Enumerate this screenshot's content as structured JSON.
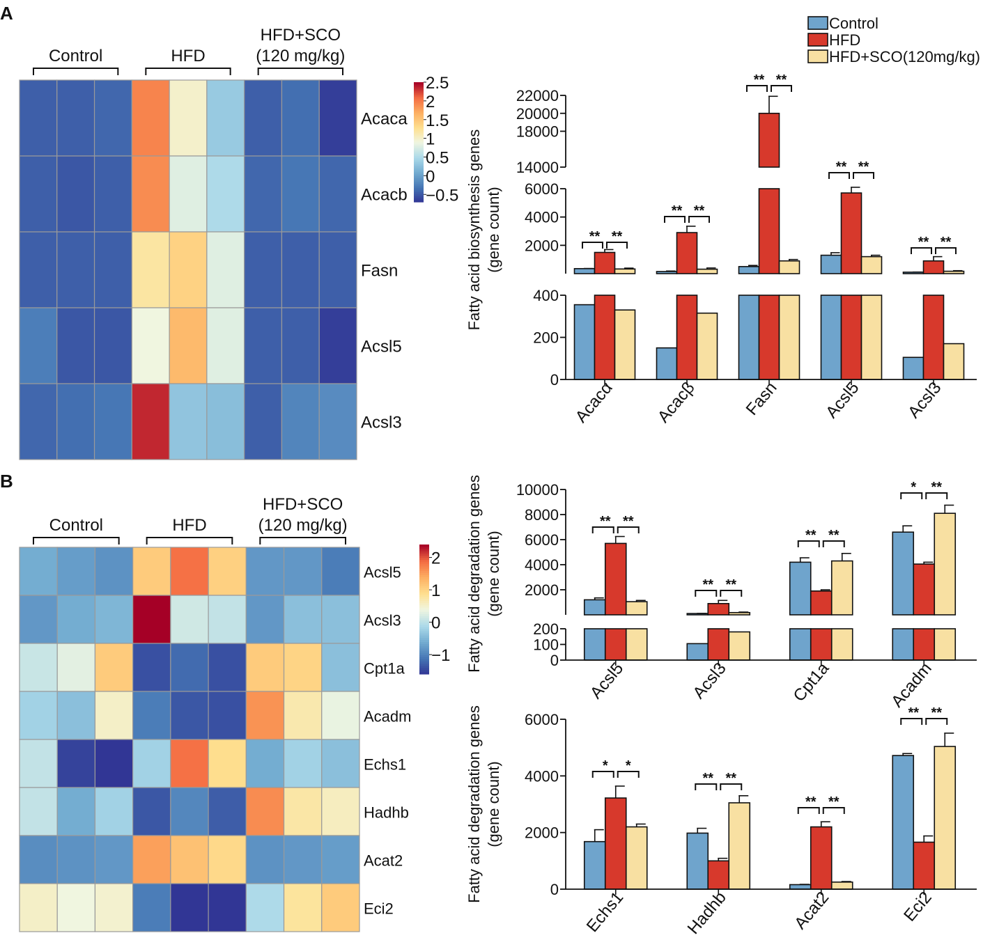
{
  "figure": {
    "panel_a_label": "A",
    "panel_b_label": "B"
  },
  "colors": {
    "control": "#6fa4cc",
    "hfd": "#d7392c",
    "sco": "#f8e0a2",
    "border": "#111111"
  },
  "chart_data": [
    {
      "id": "heatmap_a",
      "type": "heatmap",
      "title": "",
      "groups": [
        {
          "label": "Control"
        },
        {
          "label": "HFD"
        },
        {
          "label": "HFD+SCO",
          "label2": "(120 mg/kg)"
        }
      ],
      "rows": [
        "Acaca",
        "Acacb",
        "Fasn",
        "Acsl5",
        "Acsl3"
      ],
      "values": [
        [
          -0.45,
          -0.45,
          -0.4,
          1.95,
          1.0,
          0.35,
          -0.45,
          -0.35,
          -0.65
        ],
        [
          -0.45,
          -0.5,
          -0.45,
          1.9,
          0.8,
          0.5,
          -0.4,
          -0.3,
          -0.4
        ],
        [
          -0.45,
          -0.45,
          -0.45,
          1.2,
          1.4,
          0.8,
          -0.45,
          -0.45,
          -0.45
        ],
        [
          -0.25,
          -0.5,
          -0.5,
          0.9,
          1.6,
          0.8,
          -0.45,
          -0.45,
          -0.65
        ],
        [
          -0.4,
          -0.35,
          -0.3,
          2.35,
          0.3,
          0.25,
          -0.45,
          -0.2,
          -0.15
        ]
      ],
      "colorbar": {
        "min": -0.7,
        "max": 2.5,
        "ticks": [
          -0.5,
          0,
          0.5,
          1,
          1.5,
          2,
          2.5
        ],
        "tick_labels": [
          "−0.5",
          "0",
          "0.5",
          "1",
          "1.5",
          "2",
          "2.5"
        ]
      }
    },
    {
      "id": "bar_a",
      "type": "bar",
      "title": "",
      "legend": [
        "Control",
        "HFD",
        "HFD+SCO(120mg/kg)"
      ],
      "ylabel": "Fatty acid biosynthesis genes",
      "ylabel2": "(gene count)",
      "categories": [
        "Acacα",
        "Acacβ",
        "Fasn",
        "Acsl5",
        "Acsl3"
      ],
      "series": [
        {
          "name": "Control",
          "values": [
            355,
            150,
            500,
            1300,
            105
          ],
          "errors": [
            10,
            35,
            80,
            180,
            8
          ]
        },
        {
          "name": "HFD",
          "values": [
            1500,
            2900,
            20000,
            5700,
            900
          ],
          "errors": [
            200,
            450,
            1900,
            400,
            300
          ]
        },
        {
          "name": "HFD+SCO(120mg/kg)",
          "values": [
            330,
            315,
            900,
            1200,
            170
          ],
          "errors": [
            60,
            85,
            100,
            100,
            40
          ]
        }
      ],
      "axis_segments": [
        {
          "range": [
            0,
            400
          ],
          "ticks": [
            0,
            200,
            400
          ]
        },
        {
          "range": [
            0,
            6000
          ],
          "ticks": [
            2000,
            4000,
            6000
          ]
        },
        {
          "range": [
            14000,
            22000
          ],
          "ticks": [
            14000,
            18000,
            20000,
            22000
          ]
        }
      ],
      "significance": [
        [
          "**",
          "**"
        ],
        [
          "**",
          "**"
        ],
        [
          "**",
          "**"
        ],
        [
          "**",
          "**"
        ],
        [
          "**",
          "**"
        ]
      ]
    },
    {
      "id": "heatmap_b",
      "type": "heatmap",
      "title": "",
      "groups": [
        {
          "label": "Control"
        },
        {
          "label": "HFD"
        },
        {
          "label": "HFD+SCO",
          "label2": "(120 mg/kg)"
        }
      ],
      "rows": [
        "Acsl5",
        "Acsl3",
        "Cpt1a",
        "Acadm",
        "Echs1",
        "Hadhb",
        "Acat2",
        "Eci2"
      ],
      "values": [
        [
          -0.6,
          -0.75,
          -0.85,
          1.1,
          1.85,
          1.05,
          -0.8,
          -0.8,
          -1.05
        ],
        [
          -0.8,
          -0.6,
          -0.5,
          2.4,
          0.15,
          0.05,
          -0.8,
          -0.4,
          -0.4
        ],
        [
          0.1,
          0.3,
          1.1,
          -1.4,
          -1.2,
          -1.4,
          1.1,
          1.0,
          -0.4
        ],
        [
          -0.2,
          -0.4,
          0.55,
          -1.05,
          -1.35,
          -1.4,
          1.6,
          0.7,
          0.35
        ],
        [
          0.05,
          -1.5,
          -1.6,
          -0.2,
          1.85,
          0.9,
          -0.6,
          -0.2,
          -0.4
        ],
        [
          0.05,
          -0.6,
          -0.2,
          -1.35,
          -0.95,
          -1.3,
          1.65,
          0.75,
          0.6
        ],
        [
          -0.9,
          -0.85,
          -0.8,
          1.5,
          1.2,
          0.95,
          -0.85,
          -0.8,
          -0.75
        ],
        [
          0.55,
          0.4,
          0.5,
          -1.05,
          -1.8,
          -1.75,
          -0.1,
          0.8,
          1.1
        ]
      ],
      "colorbar": {
        "min": -1.6,
        "max": 2.4,
        "ticks": [
          -1,
          0,
          1,
          2
        ],
        "tick_labels": [
          "−1",
          "0",
          "1",
          "2"
        ]
      }
    },
    {
      "id": "bar_b1",
      "type": "bar",
      "title": "",
      "ylabel": "Fatty acid degradation genes",
      "ylabel2": "(gene count)",
      "categories": [
        "Acsl5",
        "Acsl3",
        "Cpt1a",
        "Acadm"
      ],
      "series": [
        {
          "name": "Control",
          "values": [
            1200,
            105,
            4200,
            6600
          ],
          "errors": [
            150,
            8,
            350,
            500
          ]
        },
        {
          "name": "HFD",
          "values": [
            5700,
            900,
            1900,
            4050
          ],
          "errors": [
            550,
            250,
            100,
            150
          ]
        },
        {
          "name": "HFD+SCO(120mg/kg)",
          "values": [
            1050,
            180,
            4300,
            8100
          ],
          "errors": [
            100,
            40,
            600,
            650
          ]
        }
      ],
      "axis_segments": [
        {
          "range": [
            0,
            200
          ],
          "ticks": [
            0,
            100,
            200
          ]
        },
        {
          "range": [
            0,
            10000
          ],
          "ticks": [
            2000,
            4000,
            6000,
            8000,
            10000
          ]
        }
      ],
      "significance": [
        [
          "**",
          "**"
        ],
        [
          "**",
          "**"
        ],
        [
          "**",
          "**"
        ],
        [
          "*",
          "**"
        ]
      ]
    },
    {
      "id": "bar_b2",
      "type": "bar",
      "title": "",
      "ylabel": "Fatty acid degradation genes",
      "ylabel2": "(gene count)",
      "categories": [
        "Echs1",
        "Hadhb",
        "Acat2",
        "Eci2"
      ],
      "series": [
        {
          "name": "Control",
          "values": [
            1680,
            1980,
            160,
            4720
          ],
          "errors": [
            420,
            170,
            10,
            70
          ]
        },
        {
          "name": "HFD",
          "values": [
            3220,
            1000,
            2200,
            1660
          ],
          "errors": [
            420,
            90,
            180,
            220
          ]
        },
        {
          "name": "HFD+SCO(120mg/kg)",
          "values": [
            2200,
            3050,
            250,
            5040
          ],
          "errors": [
            100,
            250,
            20,
            470
          ]
        }
      ],
      "ylim": [
        0,
        6000
      ],
      "yticks": [
        0,
        2000,
        4000,
        6000
      ],
      "significance": [
        [
          "*",
          "*"
        ],
        [
          "**",
          "**"
        ],
        [
          "**",
          "**"
        ],
        [
          "**",
          "**"
        ]
      ]
    }
  ]
}
